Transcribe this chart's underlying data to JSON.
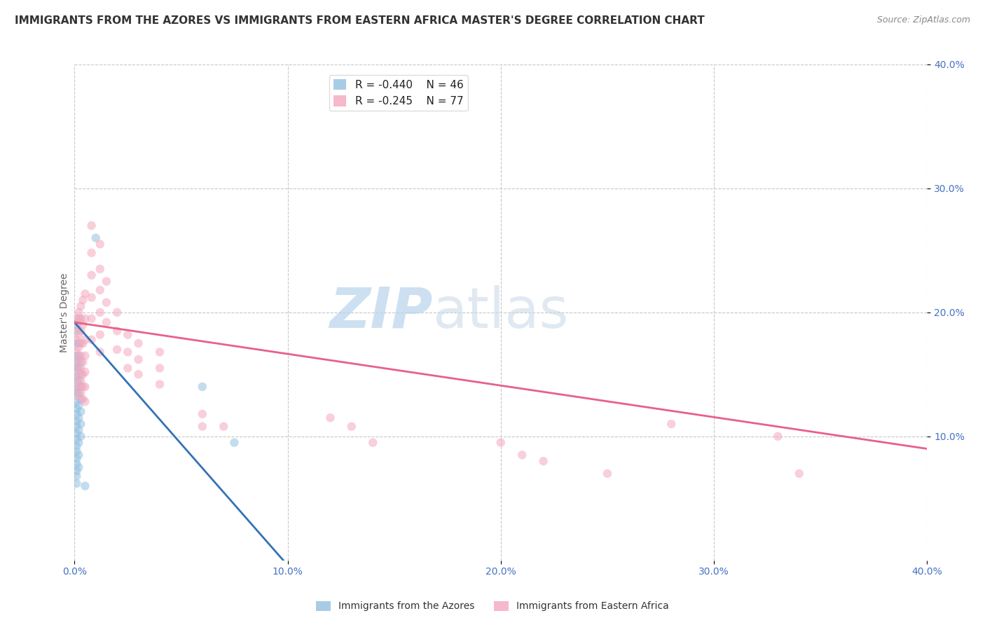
{
  "title": "IMMIGRANTS FROM THE AZORES VS IMMIGRANTS FROM EASTERN AFRICA MASTER'S DEGREE CORRELATION CHART",
  "source": "Source: ZipAtlas.com",
  "ylabel": "Master's Degree",
  "xlim": [
    0.0,
    0.4
  ],
  "ylim": [
    0.0,
    0.4
  ],
  "xticks": [
    0.0,
    0.1,
    0.2,
    0.3,
    0.4
  ],
  "yticks": [
    0.1,
    0.2,
    0.3,
    0.4
  ],
  "xtick_labels": [
    "0.0%",
    "10.0%",
    "20.0%",
    "30.0%",
    "40.0%"
  ],
  "ytick_labels": [
    "10.0%",
    "20.0%",
    "30.0%",
    "40.0%"
  ],
  "watermark_zip": "ZIP",
  "watermark_atlas": "atlas",
  "legend_line1": "R = -0.440    N = 46",
  "legend_line2": "R = -0.245    N = 77",
  "legend_label1": "Immigrants from the Azores",
  "legend_label2": "Immigrants from Eastern Africa",
  "blue_scatter": [
    [
      0.001,
      0.19
    ],
    [
      0.001,
      0.185
    ],
    [
      0.001,
      0.175
    ],
    [
      0.001,
      0.165
    ],
    [
      0.001,
      0.16
    ],
    [
      0.001,
      0.155
    ],
    [
      0.001,
      0.148
    ],
    [
      0.001,
      0.14
    ],
    [
      0.001,
      0.135
    ],
    [
      0.001,
      0.128
    ],
    [
      0.001,
      0.122
    ],
    [
      0.001,
      0.118
    ],
    [
      0.001,
      0.112
    ],
    [
      0.001,
      0.108
    ],
    [
      0.001,
      0.102
    ],
    [
      0.001,
      0.098
    ],
    [
      0.001,
      0.092
    ],
    [
      0.001,
      0.088
    ],
    [
      0.001,
      0.082
    ],
    [
      0.001,
      0.078
    ],
    [
      0.001,
      0.072
    ],
    [
      0.001,
      0.068
    ],
    [
      0.001,
      0.062
    ],
    [
      0.002,
      0.195
    ],
    [
      0.002,
      0.175
    ],
    [
      0.002,
      0.165
    ],
    [
      0.002,
      0.155
    ],
    [
      0.002,
      0.145
    ],
    [
      0.002,
      0.135
    ],
    [
      0.002,
      0.125
    ],
    [
      0.002,
      0.115
    ],
    [
      0.002,
      0.105
    ],
    [
      0.002,
      0.095
    ],
    [
      0.002,
      0.085
    ],
    [
      0.002,
      0.075
    ],
    [
      0.003,
      0.16
    ],
    [
      0.003,
      0.15
    ],
    [
      0.003,
      0.14
    ],
    [
      0.003,
      0.13
    ],
    [
      0.003,
      0.12
    ],
    [
      0.003,
      0.11
    ],
    [
      0.003,
      0.1
    ],
    [
      0.01,
      0.26
    ],
    [
      0.06,
      0.14
    ],
    [
      0.075,
      0.095
    ],
    [
      0.005,
      0.06
    ]
  ],
  "pink_scatter": [
    [
      0.001,
      0.195
    ],
    [
      0.001,
      0.188
    ],
    [
      0.001,
      0.178
    ],
    [
      0.001,
      0.168
    ],
    [
      0.001,
      0.158
    ],
    [
      0.001,
      0.148
    ],
    [
      0.001,
      0.138
    ],
    [
      0.002,
      0.2
    ],
    [
      0.002,
      0.192
    ],
    [
      0.002,
      0.182
    ],
    [
      0.002,
      0.172
    ],
    [
      0.002,
      0.162
    ],
    [
      0.002,
      0.152
    ],
    [
      0.002,
      0.142
    ],
    [
      0.002,
      0.132
    ],
    [
      0.003,
      0.205
    ],
    [
      0.003,
      0.195
    ],
    [
      0.003,
      0.185
    ],
    [
      0.003,
      0.175
    ],
    [
      0.003,
      0.165
    ],
    [
      0.003,
      0.155
    ],
    [
      0.003,
      0.145
    ],
    [
      0.003,
      0.135
    ],
    [
      0.004,
      0.21
    ],
    [
      0.004,
      0.19
    ],
    [
      0.004,
      0.175
    ],
    [
      0.004,
      0.16
    ],
    [
      0.004,
      0.15
    ],
    [
      0.004,
      0.14
    ],
    [
      0.004,
      0.13
    ],
    [
      0.005,
      0.215
    ],
    [
      0.005,
      0.195
    ],
    [
      0.005,
      0.178
    ],
    [
      0.005,
      0.165
    ],
    [
      0.005,
      0.152
    ],
    [
      0.005,
      0.14
    ],
    [
      0.005,
      0.128
    ],
    [
      0.008,
      0.27
    ],
    [
      0.008,
      0.248
    ],
    [
      0.008,
      0.23
    ],
    [
      0.008,
      0.212
    ],
    [
      0.008,
      0.195
    ],
    [
      0.008,
      0.178
    ],
    [
      0.012,
      0.255
    ],
    [
      0.012,
      0.235
    ],
    [
      0.012,
      0.218
    ],
    [
      0.012,
      0.2
    ],
    [
      0.012,
      0.182
    ],
    [
      0.012,
      0.168
    ],
    [
      0.015,
      0.225
    ],
    [
      0.015,
      0.208
    ],
    [
      0.015,
      0.192
    ],
    [
      0.02,
      0.2
    ],
    [
      0.02,
      0.185
    ],
    [
      0.02,
      0.17
    ],
    [
      0.025,
      0.182
    ],
    [
      0.025,
      0.168
    ],
    [
      0.025,
      0.155
    ],
    [
      0.03,
      0.175
    ],
    [
      0.03,
      0.162
    ],
    [
      0.03,
      0.15
    ],
    [
      0.04,
      0.168
    ],
    [
      0.04,
      0.155
    ],
    [
      0.04,
      0.142
    ],
    [
      0.06,
      0.118
    ],
    [
      0.06,
      0.108
    ],
    [
      0.07,
      0.108
    ],
    [
      0.12,
      0.115
    ],
    [
      0.13,
      0.108
    ],
    [
      0.14,
      0.095
    ],
    [
      0.2,
      0.095
    ],
    [
      0.21,
      0.085
    ],
    [
      0.22,
      0.08
    ],
    [
      0.25,
      0.07
    ],
    [
      0.28,
      0.11
    ],
    [
      0.33,
      0.1
    ],
    [
      0.34,
      0.07
    ]
  ],
  "blue_line": {
    "x": [
      0.0,
      0.098
    ],
    "y": [
      0.192,
      0.0
    ]
  },
  "pink_line": {
    "x": [
      0.0,
      0.4
    ],
    "y": [
      0.192,
      0.09
    ]
  },
  "blue_color": "#92c0e0",
  "pink_color": "#f4a8be",
  "blue_line_color": "#3472b5",
  "pink_line_color": "#e8608a",
  "tick_color": "#4472c4",
  "title_fontsize": 11,
  "axis_label_fontsize": 10,
  "tick_fontsize": 10,
  "scatter_size": 80,
  "scatter_alpha": 0.55,
  "grid_color": "#c8c8c8",
  "background_color": "#ffffff"
}
